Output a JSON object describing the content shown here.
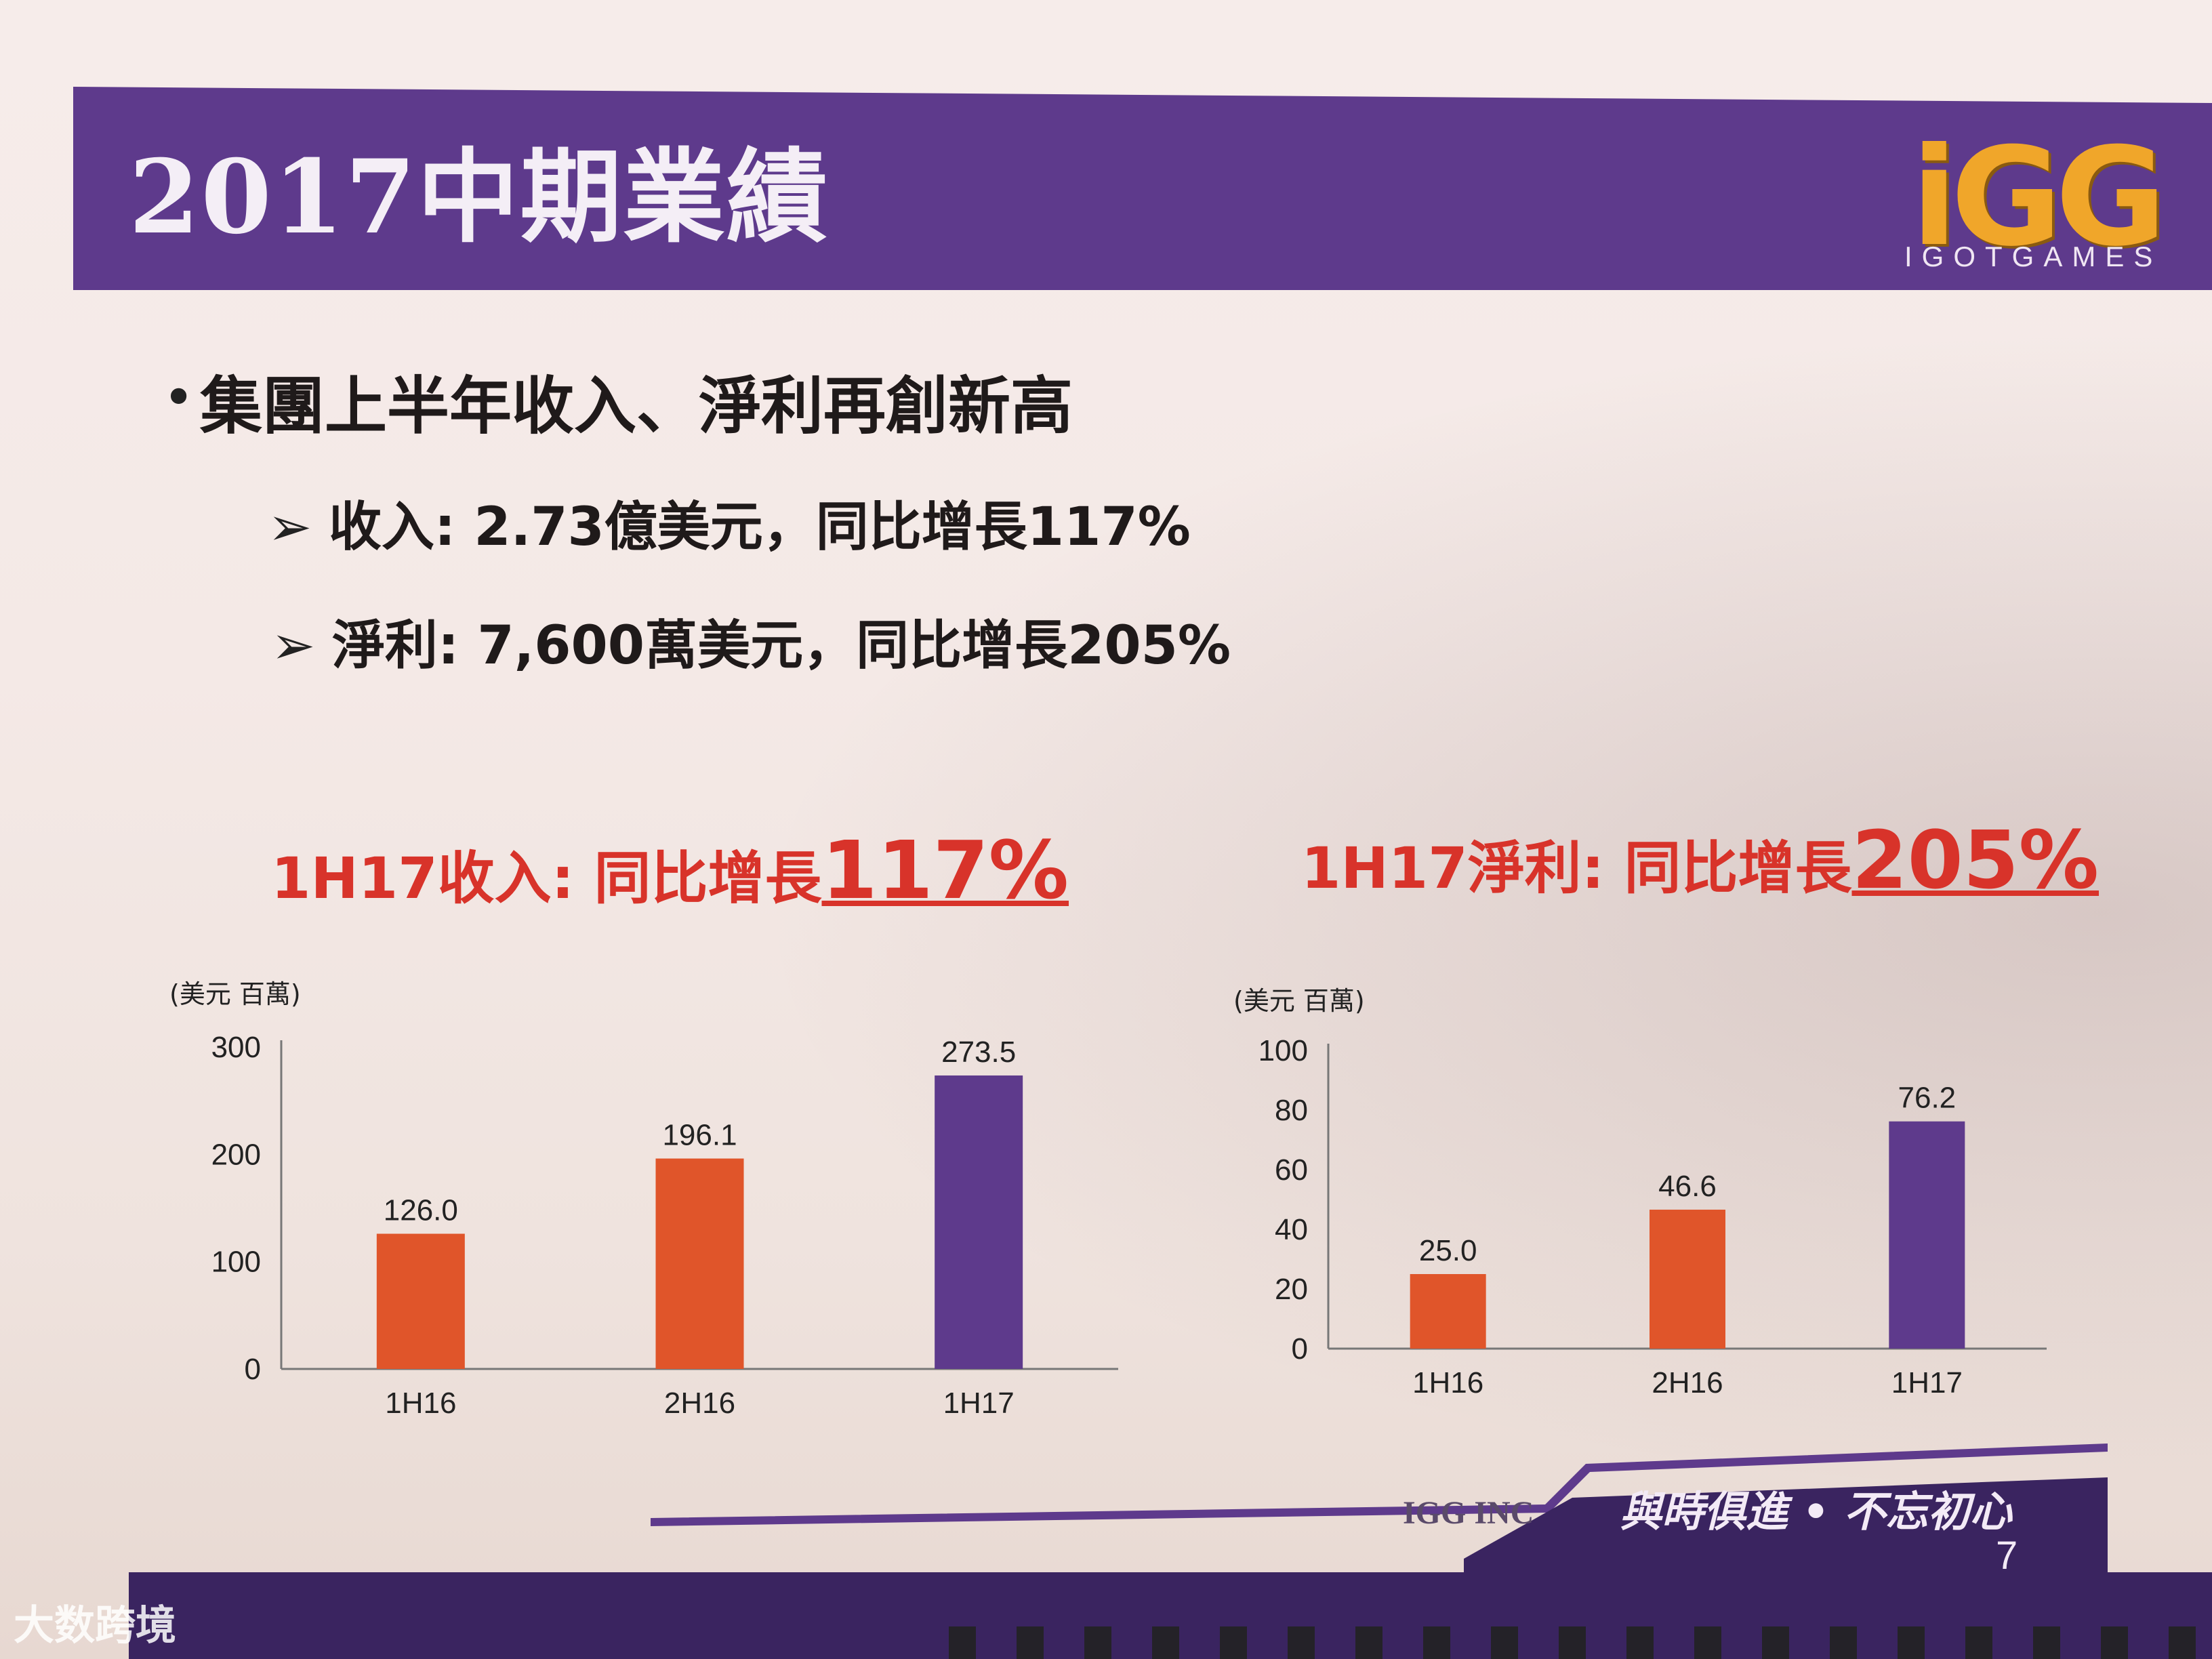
{
  "header": {
    "title": "2017中期業績",
    "logo_text": "iGG",
    "logo_subtitle": "IGOTGAMES"
  },
  "headline": "集團上半年收入、淨利再創新高",
  "bullets": [
    {
      "label": "收入: 2.73億美元，同比增長117%"
    },
    {
      "label": "淨利: 7,600萬美元，同比增長205%"
    }
  ],
  "charts": {
    "revenue": {
      "title_prefix": "1H17收入: 同比增長",
      "title_value": "117%"
    },
    "profit": {
      "title_prefix": "1H17淨利: 同比增長",
      "title_value": "205%"
    }
  },
  "chart_data": [
    {
      "type": "bar",
      "ylabel": "(美元 百萬)",
      "categories": [
        "1H16",
        "2H16",
        "1H17"
      ],
      "values": [
        126.0,
        196.1,
        273.5
      ],
      "value_labels": [
        "126.0",
        "196.1",
        "273.5"
      ],
      "ylim": [
        0,
        300
      ],
      "yticks": [
        0,
        100,
        200,
        300
      ],
      "ytick_labels": [
        "0",
        "100",
        "200",
        "300"
      ],
      "bar_colors": [
        "#e0552a",
        "#e0552a",
        "#5e3a8c"
      ],
      "grid": false
    },
    {
      "type": "bar",
      "ylabel": "(美元 百萬)",
      "categories": [
        "1H16",
        "2H16",
        "1H17"
      ],
      "values": [
        25.0,
        46.6,
        76.2
      ],
      "value_labels": [
        "25.0",
        "46.6",
        "76.2"
      ],
      "ylim": [
        0,
        100
      ],
      "yticks": [
        0,
        20,
        40,
        60,
        80,
        100
      ],
      "ytick_labels": [
        "0",
        "20",
        "40",
        "60",
        "80",
        "100"
      ],
      "bar_colors": [
        "#e0552a",
        "#e0552a",
        "#5e3a8c"
      ],
      "grid": false
    }
  ],
  "footer": {
    "company": "IGG INC",
    "slogan": "與時俱進 • 不忘初心",
    "page_number": "7"
  },
  "watermark": "大数跨境",
  "colors": {
    "banner": "#5e3a8c",
    "accent_red": "#d8332a",
    "bar_orange": "#e0552a",
    "bar_purple": "#5e3a8c"
  }
}
